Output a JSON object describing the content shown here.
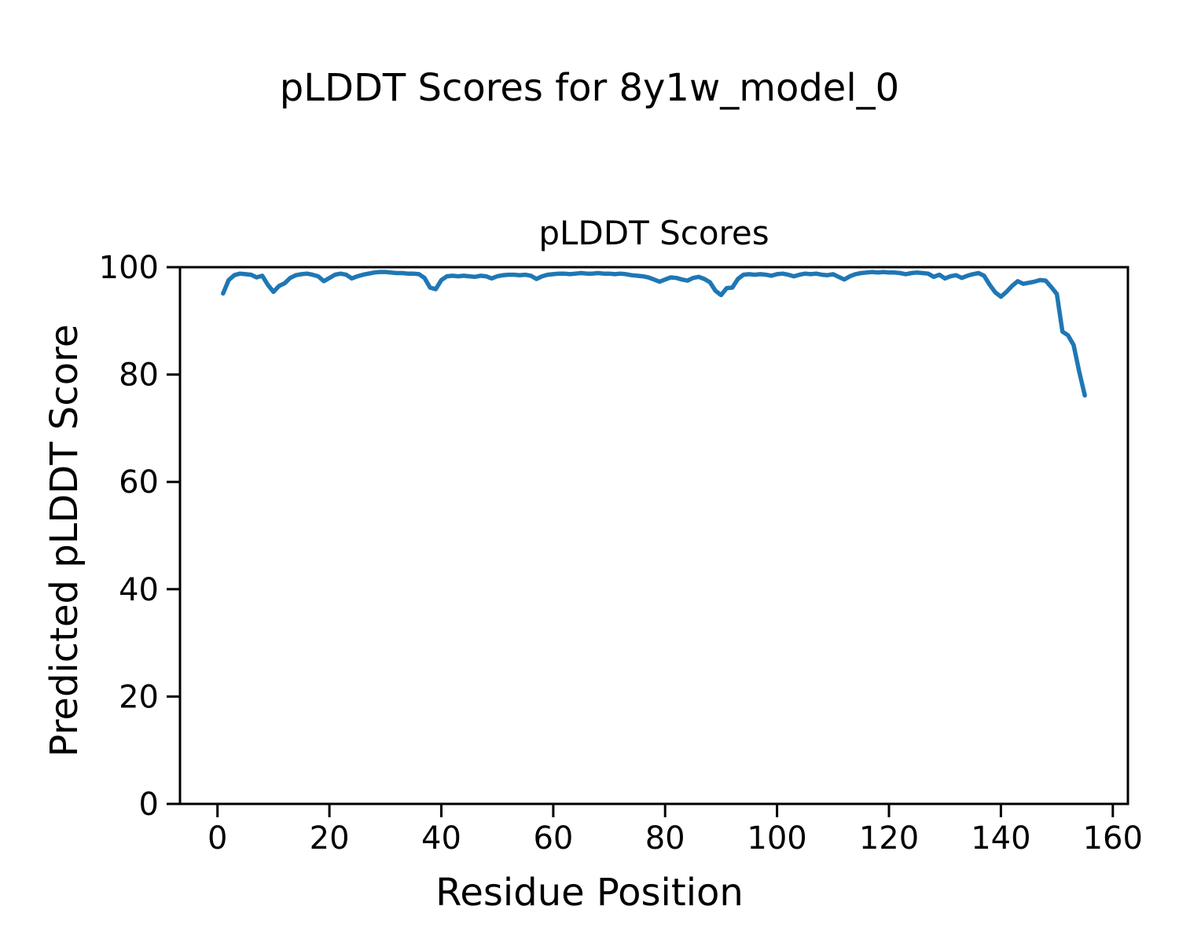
{
  "figure": {
    "suptitle": "pLDDT Scores for 8y1w_model_0",
    "background_color": "#ffffff",
    "text_color": "#000000"
  },
  "chart_data": {
    "type": "line",
    "title": "pLDDT Scores",
    "xlabel": "Residue Position",
    "ylabel": "Predicted pLDDT Score",
    "xlim": [
      -6.7,
      162.7
    ],
    "ylim": [
      0,
      100
    ],
    "xticks": [
      0,
      20,
      40,
      60,
      80,
      100,
      120,
      140,
      160
    ],
    "yticks": [
      0,
      20,
      40,
      60,
      80,
      100
    ],
    "grid": false,
    "legend": "none",
    "line_color": "#1f77b4",
    "x_start": 1,
    "series_name": "pLDDT per residue",
    "values": [
      95.1,
      97.6,
      98.5,
      98.8,
      98.7,
      98.6,
      98.1,
      98.4,
      96.7,
      95.4,
      96.5,
      97.0,
      98.0,
      98.5,
      98.7,
      98.8,
      98.6,
      98.3,
      97.4,
      98.0,
      98.6,
      98.8,
      98.6,
      97.9,
      98.3,
      98.6,
      98.8,
      99.0,
      99.1,
      99.1,
      99.0,
      98.9,
      98.9,
      98.8,
      98.8,
      98.7,
      98.0,
      96.2,
      95.9,
      97.6,
      98.3,
      98.4,
      98.3,
      98.4,
      98.3,
      98.2,
      98.4,
      98.3,
      97.9,
      98.3,
      98.5,
      98.6,
      98.6,
      98.5,
      98.6,
      98.4,
      97.8,
      98.3,
      98.6,
      98.7,
      98.8,
      98.8,
      98.7,
      98.8,
      98.9,
      98.8,
      98.8,
      98.9,
      98.8,
      98.8,
      98.7,
      98.8,
      98.7,
      98.5,
      98.4,
      98.3,
      98.1,
      97.7,
      97.3,
      97.7,
      98.1,
      98.0,
      97.7,
      97.5,
      98.0,
      98.2,
      97.8,
      97.2,
      95.6,
      94.8,
      96.1,
      96.2,
      97.8,
      98.6,
      98.7,
      98.6,
      98.7,
      98.6,
      98.4,
      98.7,
      98.8,
      98.6,
      98.3,
      98.6,
      98.8,
      98.7,
      98.8,
      98.6,
      98.5,
      98.7,
      98.2,
      97.7,
      98.3,
      98.7,
      98.9,
      99.0,
      99.1,
      99.0,
      99.1,
      99.0,
      99.0,
      98.9,
      98.7,
      98.9,
      99.0,
      98.9,
      98.8,
      98.2,
      98.6,
      97.9,
      98.3,
      98.5,
      98.0,
      98.4,
      98.7,
      98.9,
      98.4,
      96.7,
      95.3,
      94.5,
      95.4,
      96.5,
      97.4,
      96.9,
      97.1,
      97.3,
      97.6,
      97.5,
      96.3,
      95.0,
      88.0,
      87.3,
      85.5,
      80.5,
      76.1
    ]
  }
}
